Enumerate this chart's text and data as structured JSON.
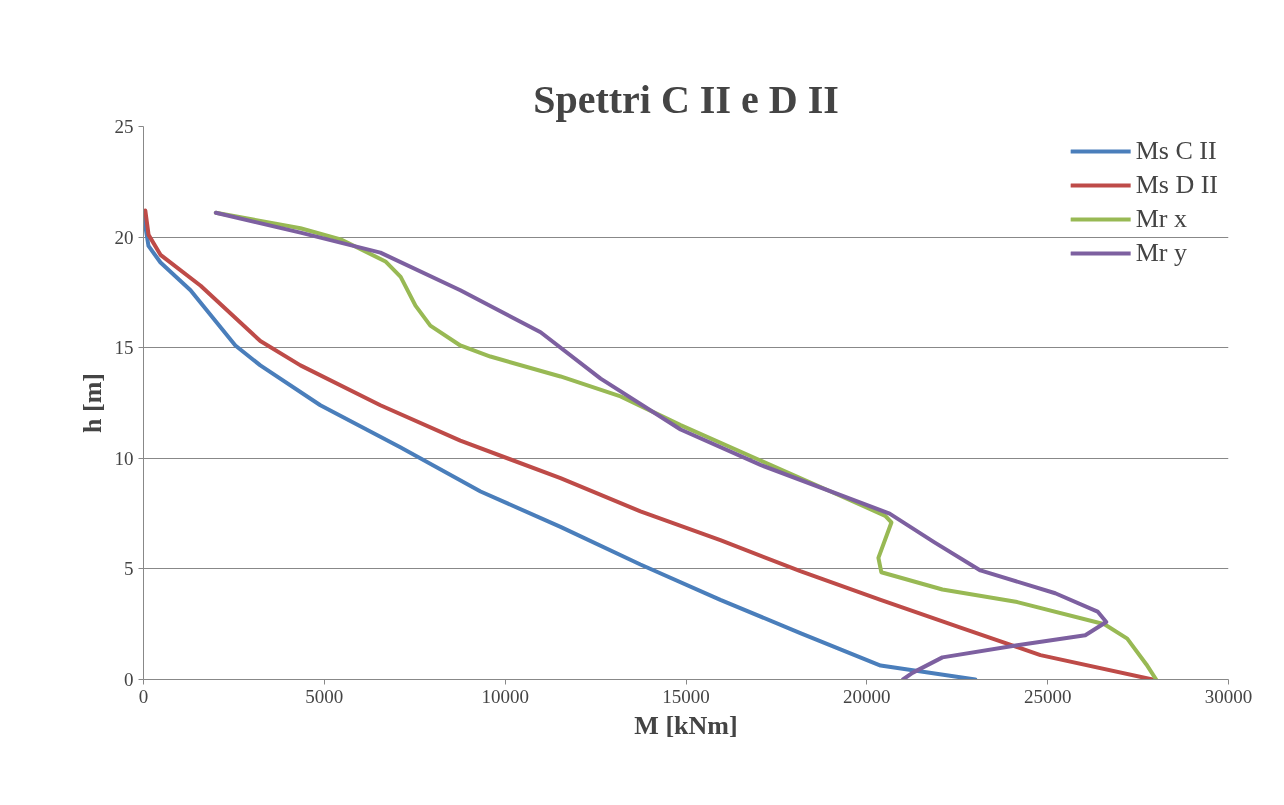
{
  "chart_data": {
    "type": "line",
    "title": "Spettri C II e D II",
    "xlabel": "M [kNm]",
    "ylabel": "h [m]",
    "xlim": [
      0,
      30000
    ],
    "xticks": [
      0,
      5000,
      10000,
      15000,
      20000,
      25000,
      30000
    ],
    "ylim": [
      0,
      25
    ],
    "yticks": [
      0,
      5,
      10,
      15,
      20,
      25
    ],
    "grid": "y",
    "legend": "top right",
    "marker": "none",
    "line_style": "solid",
    "series": [
      {
        "name": "Ms C II",
        "color": "#4a7ebb",
        "x": [
          0,
          50,
          138,
          470,
          1300,
          2540,
          3230,
          4890,
          7100,
          9320,
          11530,
          13740,
          15950,
          18160,
          20380,
          23000
        ],
        "values": [
          21,
          20.5,
          19.6,
          18.85,
          17.6,
          15.1,
          14.2,
          12.4,
          10.5,
          8.5,
          6.9,
          5.2,
          3.6,
          2.1,
          0.63,
          0
        ]
      },
      {
        "name": "Ms D II",
        "color": "#be4b48",
        "x": [
          50,
          140,
          470,
          1580,
          3230,
          4340,
          6550,
          8760,
          11530,
          13740,
          15950,
          18160,
          20380,
          22590,
          24800,
          27900
        ],
        "values": [
          21.2,
          20.1,
          19.2,
          17.8,
          15.3,
          14.2,
          12.4,
          10.8,
          9.1,
          7.6,
          6.3,
          4.9,
          3.6,
          2.35,
          1.1,
          0
        ]
      },
      {
        "name": "Mr x",
        "color": "#98b954",
        "x": [
          2000,
          4340,
          5450,
          6690,
          7110,
          7520,
          7930,
          8760,
          9590,
          11530,
          13190,
          14850,
          17060,
          19000,
          20510,
          20680,
          20320,
          20400,
          22090,
          24160,
          26570,
          27200,
          27730,
          28000
        ],
        "values": [
          21.1,
          20.4,
          19.9,
          18.9,
          18.2,
          16.9,
          16.0,
          15.1,
          14.6,
          13.7,
          12.8,
          11.5,
          9.9,
          8.5,
          7.4,
          7.1,
          5.5,
          4.85,
          4.07,
          3.5,
          2.5,
          1.85,
          0.68,
          0
        ]
      },
      {
        "name": "Mr y",
        "color": "#7d60a0",
        "x": [
          2000,
          4340,
          6550,
          8760,
          10980,
          12640,
          14850,
          17060,
          20630,
          21870,
          23140,
          25210,
          26380,
          26620,
          26040,
          24160,
          22090,
          21260,
          21000
        ],
        "values": [
          21.1,
          20.2,
          19.3,
          17.6,
          15.7,
          13.6,
          11.3,
          9.7,
          7.5,
          6.2,
          4.93,
          3.9,
          3.07,
          2.6,
          2.0,
          1.55,
          1.0,
          0.3,
          0
        ]
      }
    ]
  }
}
